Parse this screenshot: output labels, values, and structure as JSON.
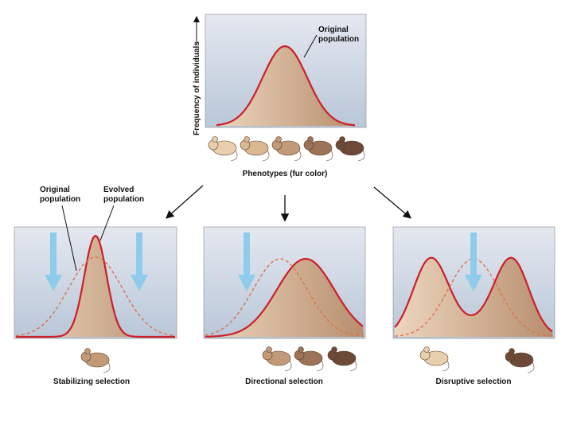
{
  "top_panel": {
    "y_axis_label": "Frequency of individuals",
    "annotation": [
      "Original",
      "population"
    ],
    "x_axis_label": "Phenotypes (fur color)"
  },
  "stabilizing": {
    "annotation_original": [
      "Original",
      "population"
    ],
    "annotation_evolved": [
      "Evolved",
      "population"
    ],
    "label": "Stabilizing selection"
  },
  "directional": {
    "label": "Directional selection"
  },
  "disruptive": {
    "label": "Disruptive selection"
  }
}
